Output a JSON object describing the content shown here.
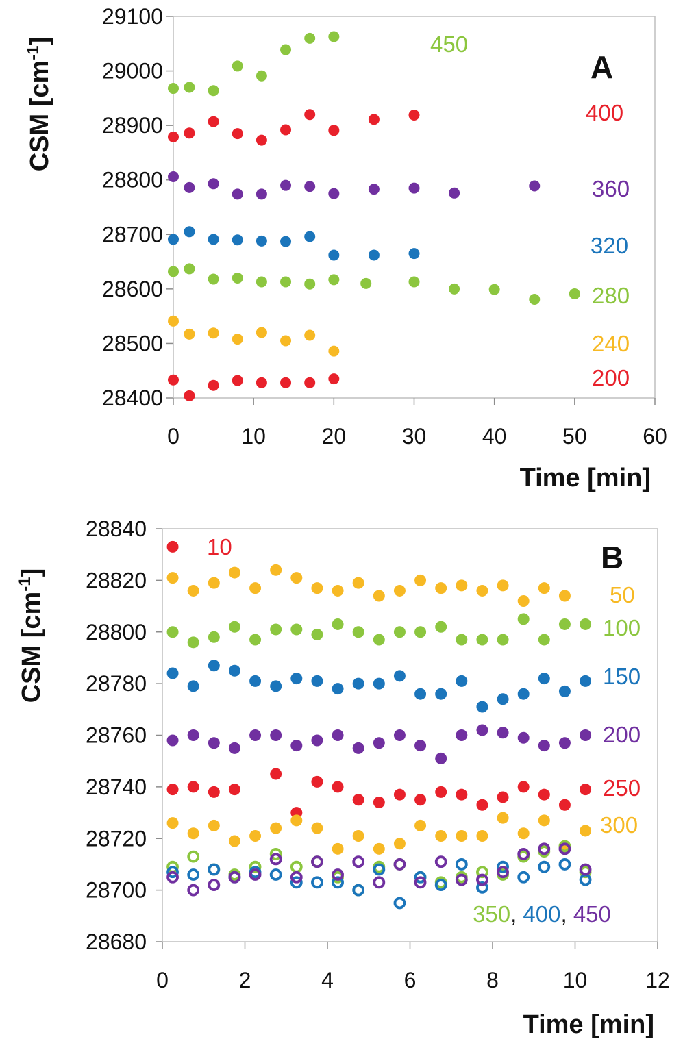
{
  "figure": {
    "panel_a": {
      "letter": "A",
      "xlabel": "Time [min]",
      "ylabel_main": "CSM [cm",
      "ylabel_sup": "-1",
      "ylabel_close": "]"
    },
    "panel_b": {
      "letter": "B",
      "xlabel": "Time [min]",
      "ylabel_main": "CSM [cm",
      "ylabel_sup": "-1",
      "ylabel_close": "]"
    },
    "series_labels_b_bottom": {
      "l350": "350",
      "sep1": ", ",
      "l400": "400",
      "sep2": ", ",
      "l450": "450"
    }
  },
  "colors": {
    "red": "#e8212b",
    "purple": "#7030a0",
    "blue": "#1b75bb",
    "green": "#8cc63f",
    "yellow": "#f7b924"
  },
  "chart_data": [
    {
      "panel": "A",
      "type": "scatter",
      "title": "",
      "xlabel": "Time [min]",
      "ylabel": "CSM [cm-1]",
      "xlim": [
        0,
        60
      ],
      "ylim": [
        28400,
        29100
      ],
      "xticks": [
        0,
        10,
        20,
        30,
        40,
        50,
        60
      ],
      "yticks": [
        28400,
        28500,
        28600,
        28700,
        28800,
        28900,
        29000,
        29100
      ],
      "grid": false,
      "series": [
        {
          "name": "450",
          "color": "#8cc63f",
          "marker": "filled",
          "x": [
            0,
            2,
            5,
            8,
            11,
            14,
            17,
            20
          ],
          "y": [
            28968,
            28970,
            28964,
            29009,
            28991,
            29039,
            29060,
            29063
          ]
        },
        {
          "name": "400",
          "color": "#e8212b",
          "marker": "filled",
          "x": [
            0,
            2,
            5,
            8,
            11,
            14,
            17,
            20,
            25,
            30
          ],
          "y": [
            28879,
            28886,
            28907,
            28885,
            28873,
            28892,
            28920,
            28891,
            28911,
            28919
          ]
        },
        {
          "name": "360",
          "color": "#7030a0",
          "marker": "filled",
          "x": [
            0,
            2,
            5,
            8,
            11,
            14,
            17,
            20,
            25,
            30,
            35,
            45
          ],
          "y": [
            28806,
            28786,
            28793,
            28774,
            28774,
            28790,
            28788,
            28775,
            28783,
            28785,
            28776,
            28789
          ]
        },
        {
          "name": "320",
          "color": "#1b75bb",
          "marker": "filled",
          "x": [
            0,
            2,
            5,
            8,
            11,
            14,
            17,
            20,
            25,
            30
          ],
          "y": [
            28691,
            28705,
            28691,
            28690,
            28688,
            28687,
            28696,
            28662,
            28662,
            28665
          ]
        },
        {
          "name": "280",
          "color": "#8cc63f",
          "marker": "filled",
          "x": [
            0,
            2,
            5,
            8,
            11,
            14,
            17,
            20,
            24,
            30,
            35,
            40,
            45,
            50
          ],
          "y": [
            28632,
            28637,
            28618,
            28620,
            28613,
            28613,
            28609,
            28617,
            28610,
            28613,
            28600,
            28599,
            28581,
            28591
          ]
        },
        {
          "name": "240",
          "color": "#f7b924",
          "marker": "filled",
          "x": [
            0,
            2,
            5,
            8,
            11,
            14,
            17,
            20
          ],
          "y": [
            28541,
            28517,
            28519,
            28508,
            28520,
            28505,
            28515,
            28486
          ]
        },
        {
          "name": "200",
          "color": "#e8212b",
          "marker": "filled",
          "x": [
            0,
            2,
            5,
            8,
            11,
            14,
            17,
            20
          ],
          "y": [
            28433,
            28404,
            28423,
            28432,
            28428,
            28428,
            28428,
            28435
          ]
        }
      ]
    },
    {
      "panel": "B",
      "type": "scatter",
      "title": "",
      "xlabel": "Time [min]",
      "ylabel": "CSM [cm-1]",
      "xlim": [
        0,
        12
      ],
      "ylim": [
        28680,
        28840
      ],
      "xticks": [
        0,
        2,
        4,
        6,
        8,
        10,
        12
      ],
      "yticks": [
        28680,
        28700,
        28720,
        28740,
        28760,
        28780,
        28800,
        28820,
        28840
      ],
      "grid": false,
      "series": [
        {
          "name": "10",
          "color": "#e8212b",
          "marker": "filled",
          "x": [
            0.25
          ],
          "y": [
            28833
          ]
        },
        {
          "name": "50",
          "color": "#f7b924",
          "marker": "filled",
          "x": [
            0.25,
            0.75,
            1.25,
            1.75,
            2.25,
            2.75,
            3.25,
            3.75,
            4.25,
            4.75,
            5.25,
            5.75,
            6.25,
            6.75,
            7.25,
            7.75,
            8.25,
            8.75,
            9.25,
            9.75
          ],
          "y": [
            28821,
            28816,
            28819,
            28823,
            28817,
            28824,
            28821,
            28817,
            28816,
            28819,
            28814,
            28816,
            28820,
            28817,
            28818,
            28816,
            28818,
            28812,
            28817,
            28814
          ]
        },
        {
          "name": "100",
          "color": "#8cc63f",
          "marker": "filled",
          "x": [
            0.25,
            0.75,
            1.25,
            1.75,
            2.25,
            2.75,
            3.25,
            3.75,
            4.25,
            4.75,
            5.25,
            5.75,
            6.25,
            6.75,
            7.25,
            7.75,
            8.25,
            8.75,
            9.25,
            9.75,
            10.25
          ],
          "y": [
            28800,
            28796,
            28798,
            28802,
            28797,
            28801,
            28801,
            28799,
            28803,
            28800,
            28797,
            28800,
            28800,
            28802,
            28797,
            28797,
            28797,
            28805,
            28797,
            28803,
            28803
          ]
        },
        {
          "name": "150",
          "color": "#1b75bb",
          "marker": "filled",
          "x": [
            0.25,
            0.75,
            1.25,
            1.75,
            2.25,
            2.75,
            3.25,
            3.75,
            4.25,
            4.75,
            5.25,
            5.75,
            6.25,
            6.75,
            7.25,
            7.75,
            8.25,
            8.75,
            9.25,
            9.75,
            10.25
          ],
          "y": [
            28784,
            28779,
            28787,
            28785,
            28781,
            28779,
            28782,
            28781,
            28778,
            28780,
            28780,
            28783,
            28776,
            28776,
            28781,
            28771,
            28774,
            28776,
            28782,
            28777,
            28781
          ]
        },
        {
          "name": "200",
          "color": "#7030a0",
          "marker": "filled",
          "x": [
            0.25,
            0.75,
            1.25,
            1.75,
            2.25,
            2.75,
            3.25,
            3.75,
            4.25,
            4.75,
            5.25,
            5.75,
            6.25,
            6.75,
            7.25,
            7.75,
            8.25,
            8.75,
            9.25,
            9.75,
            10.25
          ],
          "y": [
            28758,
            28760,
            28757,
            28755,
            28760,
            28760,
            28756,
            28758,
            28760,
            28755,
            28757,
            28760,
            28756,
            28751,
            28760,
            28762,
            28761,
            28759,
            28756,
            28757,
            28760
          ]
        },
        {
          "name": "250",
          "color": "#e8212b",
          "marker": "filled",
          "x": [
            0.25,
            0.75,
            1.25,
            1.75,
            2.75,
            3.25,
            3.75,
            4.25,
            4.75,
            5.25,
            5.75,
            6.25,
            6.75,
            7.25,
            7.75,
            8.25,
            8.75,
            9.25,
            9.75,
            10.25
          ],
          "y": [
            28739,
            28740,
            28738,
            28739,
            28745,
            28730,
            28742,
            28740,
            28735,
            28734,
            28737,
            28735,
            28738,
            28737,
            28733,
            28736,
            28740,
            28737,
            28733,
            28739
          ]
        },
        {
          "name": "300",
          "color": "#f7b924",
          "marker": "filled",
          "x": [
            0.25,
            0.75,
            1.25,
            1.75,
            2.25,
            2.75,
            3.25,
            3.75,
            4.25,
            4.75,
            5.25,
            5.75,
            6.25,
            6.75,
            7.25,
            7.75,
            8.25,
            8.75,
            9.25,
            9.75,
            10.25
          ],
          "y": [
            28726,
            28722,
            28725,
            28719,
            28721,
            28724,
            28727,
            28724,
            28716,
            28721,
            28716,
            28718,
            28725,
            28721,
            28721,
            28721,
            28728,
            28722,
            28727,
            28717,
            28723
          ]
        },
        {
          "name": "350",
          "color": "#8cc63f",
          "marker": "open",
          "x": [
            0.25,
            0.75,
            1.25,
            1.75,
            2.25,
            2.75,
            3.25,
            3.75,
            4.25,
            4.75,
            5.25,
            5.75,
            6.25,
            6.75,
            7.25,
            7.75,
            8.25,
            8.75,
            9.25,
            9.75,
            10.25
          ],
          "y": [
            28709,
            28713,
            28708,
            28706,
            28709,
            28714,
            28709,
            28711,
            28705,
            28700,
            28709,
            28710,
            28705,
            28703,
            28705,
            28707,
            28706,
            28713,
            28715,
            28717,
            28707
          ]
        },
        {
          "name": "400",
          "color": "#1b75bb",
          "marker": "open",
          "x": [
            0.25,
            0.75,
            1.25,
            1.75,
            2.25,
            2.75,
            3.25,
            3.75,
            4.25,
            4.75,
            5.25,
            5.75,
            6.25,
            6.75,
            7.25,
            7.75,
            8.25,
            8.75,
            9.25,
            9.75,
            10.25
          ],
          "y": [
            28707,
            28706,
            28708,
            28705,
            28707,
            28706,
            28703,
            28703,
            28703,
            28700,
            28708,
            28695,
            28705,
            28702,
            28710,
            28701,
            28709,
            28705,
            28709,
            28710,
            28704
          ]
        },
        {
          "name": "450",
          "color": "#7030a0",
          "marker": "open",
          "x": [
            0.25,
            0.75,
            1.25,
            1.75,
            2.25,
            2.75,
            3.25,
            3.75,
            4.25,
            4.75,
            5.25,
            5.75,
            6.25,
            6.75,
            7.25,
            7.75,
            8.25,
            8.75,
            9.25,
            9.75,
            10.25
          ],
          "y": [
            28705,
            28700,
            28702,
            28705,
            28706,
            28712,
            28705,
            28711,
            28706,
            28711,
            28703,
            28710,
            28703,
            28711,
            28704,
            28704,
            28707,
            28714,
            28716,
            28716,
            28708
          ]
        }
      ]
    }
  ]
}
